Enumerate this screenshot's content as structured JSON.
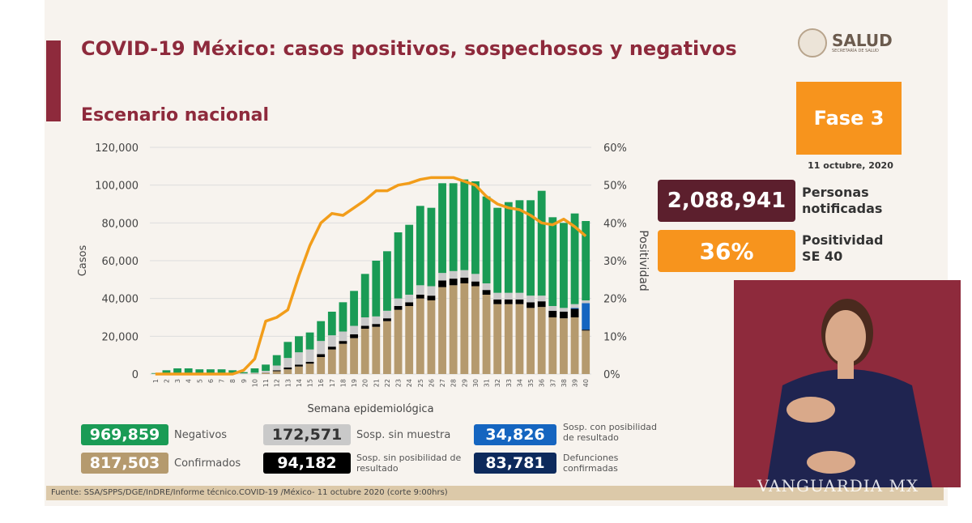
{
  "header": {
    "title": "COVID-19 México: casos positivos, sospechosos y negativos",
    "subtitle": "Escenario nacional",
    "logo_text": "SALUD",
    "logo_sub": "SECRETARÍA DE SALUD"
  },
  "side": {
    "fase": "Fase 3",
    "date": "11 octubre, 2020",
    "notified_value": "2,088,941",
    "notified_label_1": "Personas",
    "notified_label_2": "notificadas",
    "positivity_value": "36%",
    "positivity_label_1": "Positividad",
    "positivity_label_2": "SE 40"
  },
  "summary": [
    {
      "value": "969,859",
      "label": "Negativos",
      "color": "#1a9b55"
    },
    {
      "value": "817,503",
      "label": "Confirmados",
      "color": "#b59a6e"
    },
    {
      "value": "172,571",
      "label": "Sosp. sin muestra",
      "color": "#c9c9c9"
    },
    {
      "value": "94,182",
      "label": "Sosp. sin posibilidad de resultado",
      "color": "#000000"
    },
    {
      "value": "34,826",
      "label": "Sosp. con posibilidad de resultado",
      "color": "#1565c0"
    },
    {
      "value": "83,781",
      "label": "Defunciones confirmadas",
      "color": "#0d2a5c"
    }
  ],
  "footer": "Fuente: SSA/SPPS/DGE/InDRE/Informe técnico.COVID-19 /México- 11 octubre 2020 (corte 9:00hrs)",
  "watermark": "VANGUARDIA MX",
  "chart_data": {
    "type": "bar",
    "stacked": true,
    "xlabel": "Semana epidemiológica",
    "ylabel": "Casos",
    "y2label": "Positividad",
    "ylim": [
      0,
      120000
    ],
    "y2lim": [
      0,
      60
    ],
    "yticks": [
      "0",
      "20,000",
      "40,000",
      "60,000",
      "80,000",
      "100,000",
      "120,000"
    ],
    "y2ticks": [
      "0%",
      "10%",
      "20%",
      "30%",
      "40%",
      "50%",
      "60%"
    ],
    "grid": true,
    "categories": [
      "1",
      "2",
      "3",
      "4",
      "5",
      "6",
      "7",
      "8",
      "9",
      "10",
      "11",
      "12",
      "13",
      "14",
      "15",
      "16",
      "17",
      "18",
      "19",
      "20",
      "21",
      "22",
      "23",
      "24",
      "25",
      "26",
      "27",
      "28",
      "29",
      "30",
      "31",
      "32",
      "33",
      "34",
      "35",
      "36",
      "37",
      "38",
      "39",
      "40"
    ],
    "series": [
      {
        "name": "Confirmados",
        "color": "#b59a6e",
        "values": [
          0,
          0,
          0,
          0,
          0,
          0,
          0,
          0,
          100,
          200,
          600,
          1500,
          2500,
          4000,
          5500,
          9000,
          13000,
          16000,
          19000,
          24000,
          25000,
          28000,
          34000,
          36000,
          40000,
          39000,
          46000,
          47000,
          48000,
          46500,
          42000,
          37000,
          37000,
          37000,
          35000,
          35500,
          30000,
          29500,
          30000,
          23000
        ]
      },
      {
        "name": "Sosp. sin posibilidad de resultado",
        "color": "#000000",
        "values": [
          0,
          0,
          0,
          0,
          0,
          0,
          0,
          0,
          0,
          0,
          100,
          500,
          1000,
          1000,
          1000,
          1500,
          1500,
          1500,
          2000,
          1500,
          1500,
          1500,
          2000,
          2000,
          2000,
          2500,
          3500,
          3500,
          3000,
          2500,
          2500,
          2500,
          2500,
          2500,
          3000,
          3000,
          3500,
          3500,
          4500,
          500
        ]
      },
      {
        "name": "Sosp. con posibilidad de resultado",
        "color": "#1565c0",
        "values": [
          0,
          0,
          0,
          0,
          0,
          0,
          0,
          0,
          0,
          0,
          0,
          0,
          0,
          0,
          0,
          0,
          0,
          0,
          0,
          0,
          0,
          0,
          0,
          0,
          0,
          0,
          0,
          0,
          0,
          0,
          0,
          0,
          0,
          0,
          0,
          0,
          0,
          0,
          500,
          14000
        ]
      },
      {
        "name": "Sosp. sin muestra",
        "color": "#c9c9c9",
        "values": [
          200,
          300,
          400,
          400,
          400,
          400,
          400,
          400,
          300,
          500,
          1000,
          2500,
          5000,
          6500,
          6500,
          7000,
          6000,
          5000,
          4500,
          4500,
          4000,
          4000,
          4000,
          4000,
          5000,
          5000,
          4000,
          4000,
          4000,
          4000,
          3500,
          3500,
          3500,
          3500,
          3500,
          3000,
          2500,
          2000,
          2000,
          1500
        ]
      },
      {
        "name": "Negativos",
        "color": "#1a9b55",
        "values": [
          300,
          1700,
          2600,
          2600,
          2100,
          2100,
          2100,
          1600,
          600,
          2300,
          3300,
          5500,
          8500,
          8500,
          9000,
          10500,
          12500,
          15500,
          18500,
          23000,
          29500,
          31500,
          35000,
          37000,
          42000,
          41500,
          47500,
          46500,
          48000,
          49000,
          46000,
          45000,
          48000,
          49000,
          50500,
          55500,
          47000,
          45000,
          48000,
          42000
        ]
      },
      {
        "name": "Positividad",
        "type": "line",
        "axis": "right",
        "color": "#f29d1a",
        "values": [
          0,
          0,
          0,
          0,
          0,
          0,
          0,
          0,
          1,
          4,
          14,
          15,
          17,
          26,
          34,
          40,
          42.5,
          42,
          44,
          46,
          48.5,
          48.5,
          50,
          50.5,
          51.5,
          52,
          52,
          52,
          51,
          50,
          47,
          45,
          44,
          43.5,
          42,
          40,
          39.5,
          41,
          39,
          36.5
        ]
      }
    ]
  }
}
